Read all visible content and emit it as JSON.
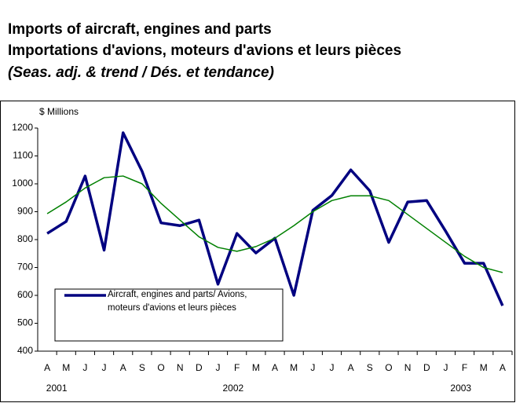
{
  "chart_data": {
    "type": "line",
    "title": "Imports of aircraft, engines and parts",
    "subtitle": "Importations d'avions, moteurs d'avions et leurs pièces",
    "note": "(Seas. adj. & trend / Dés. et tendance)",
    "y_label": "$ Millions",
    "categories": [
      "A",
      "M",
      "J",
      "J",
      "A",
      "S",
      "O",
      "N",
      "D",
      "J",
      "F",
      "M",
      "A",
      "M",
      "J",
      "J",
      "A",
      "S",
      "O",
      "N",
      "D",
      "J",
      "F",
      "M",
      "A"
    ],
    "years": [
      "2001",
      "2002",
      "2003"
    ],
    "series": [
      {
        "name": "Aircraft, engines and parts/ Avions, moteurs d'avions et leurs pièces",
        "color": "#000080",
        "values": [
          822,
          865,
          1028,
          762,
          1183,
          1045,
          860,
          850,
          870,
          640,
          822,
          752,
          805,
          600,
          905,
          958,
          1050,
          975,
          790,
          935,
          940,
          830,
          715,
          715,
          563
        ]
      },
      {
        "color": "#008000",
        "values": [
          893,
          935,
          985,
          1022,
          1028,
          1000,
          930,
          870,
          810,
          772,
          758,
          775,
          805,
          850,
          900,
          940,
          957,
          957,
          940,
          890,
          840,
          790,
          740,
          700,
          682
        ]
      }
    ],
    "ylim": [
      400,
      1200
    ],
    "yticks": [
      400,
      500,
      600,
      700,
      800,
      900,
      1000,
      1100,
      1200
    ],
    "grid": false
  }
}
